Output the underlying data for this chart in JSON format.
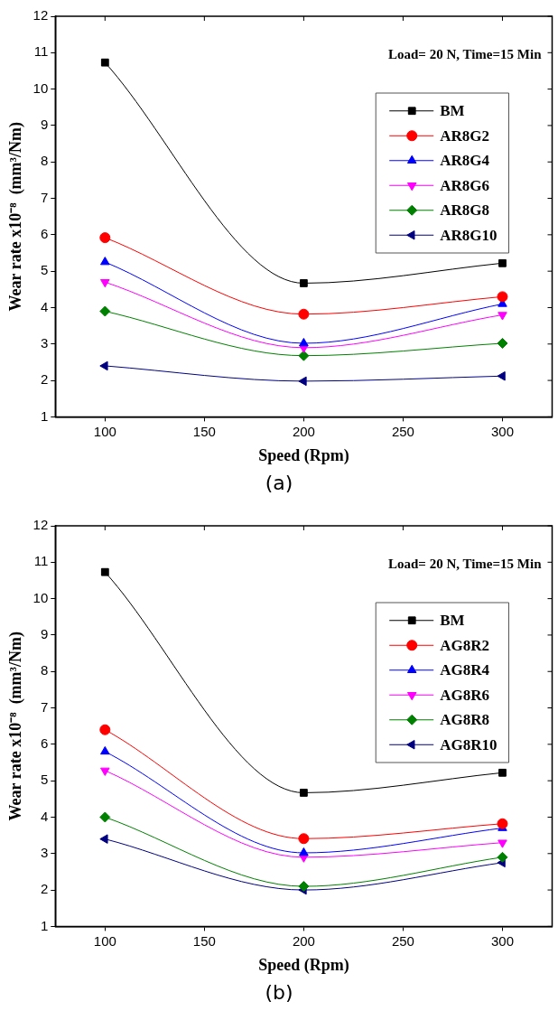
{
  "chart_data": [
    {
      "type": "line",
      "xlabel": "Speed (Rpm)",
      "ylabel": "Wear rate x10⁻⁸  (mm³/Nm)",
      "annotations": [
        "Load= 20 N, Time=15 Min",
        "(a)"
      ],
      "x": [
        100,
        200,
        300
      ],
      "xlim": [
        75,
        325
      ],
      "xticks": [
        100,
        150,
        200,
        250,
        300
      ],
      "ylim": [
        1,
        12
      ],
      "yticks": [
        1,
        2,
        3,
        4,
        5,
        6,
        7,
        8,
        9,
        10,
        11,
        12
      ],
      "grid": false,
      "legend": "top right",
      "series": [
        {
          "name": "BM",
          "color": "#000000",
          "marker": "square",
          "values": [
            10.73,
            4.67,
            5.22
          ]
        },
        {
          "name": "AR8G2",
          "color": "#ff0000",
          "marker": "circle",
          "values": [
            5.92,
            3.82,
            4.3
          ]
        },
        {
          "name": "AR8G4",
          "color": "#0000ff",
          "marker": "triangle",
          "values": [
            5.25,
            3.02,
            4.1
          ]
        },
        {
          "name": "AR8G6",
          "color": "#ff00ff",
          "marker": "triangle-down",
          "values": [
            4.7,
            2.9,
            3.8
          ]
        },
        {
          "name": "AR8G8",
          "color": "#008000",
          "marker": "diamond",
          "values": [
            3.9,
            2.68,
            3.02
          ]
        },
        {
          "name": "AR8G10",
          "color": "#000080",
          "marker": "triangle-left",
          "values": [
            2.4,
            1.98,
            2.12
          ]
        }
      ]
    },
    {
      "type": "line",
      "xlabel": "Speed (Rpm)",
      "ylabel": "Wear rate x10⁻⁸  (mm³/Nm)",
      "annotations": [
        "Load= 20 N, Time=15 Min",
        "(b)"
      ],
      "x": [
        100,
        200,
        300
      ],
      "xlim": [
        75,
        325
      ],
      "xticks": [
        100,
        150,
        200,
        250,
        300
      ],
      "ylim": [
        1,
        12
      ],
      "yticks": [
        1,
        2,
        3,
        4,
        5,
        6,
        7,
        8,
        9,
        10,
        11,
        12
      ],
      "grid": false,
      "legend": "top right",
      "series": [
        {
          "name": "BM",
          "color": "#000000",
          "marker": "square",
          "values": [
            10.73,
            4.67,
            5.22
          ]
        },
        {
          "name": "AG8R2",
          "color": "#ff0000",
          "marker": "circle",
          "values": [
            6.4,
            3.41,
            3.82
          ]
        },
        {
          "name": "AG8R4",
          "color": "#0000ff",
          "marker": "triangle",
          "values": [
            5.8,
            3.02,
            3.7
          ]
        },
        {
          "name": "AG8R6",
          "color": "#ff00ff",
          "marker": "triangle-down",
          "values": [
            5.28,
            2.9,
            3.3
          ]
        },
        {
          "name": "AG8R8",
          "color": "#008000",
          "marker": "diamond",
          "values": [
            4.0,
            2.1,
            2.9
          ]
        },
        {
          "name": "AG8R10",
          "color": "#000080",
          "marker": "triangle-left",
          "values": [
            3.4,
            2.0,
            2.75
          ]
        }
      ]
    }
  ]
}
